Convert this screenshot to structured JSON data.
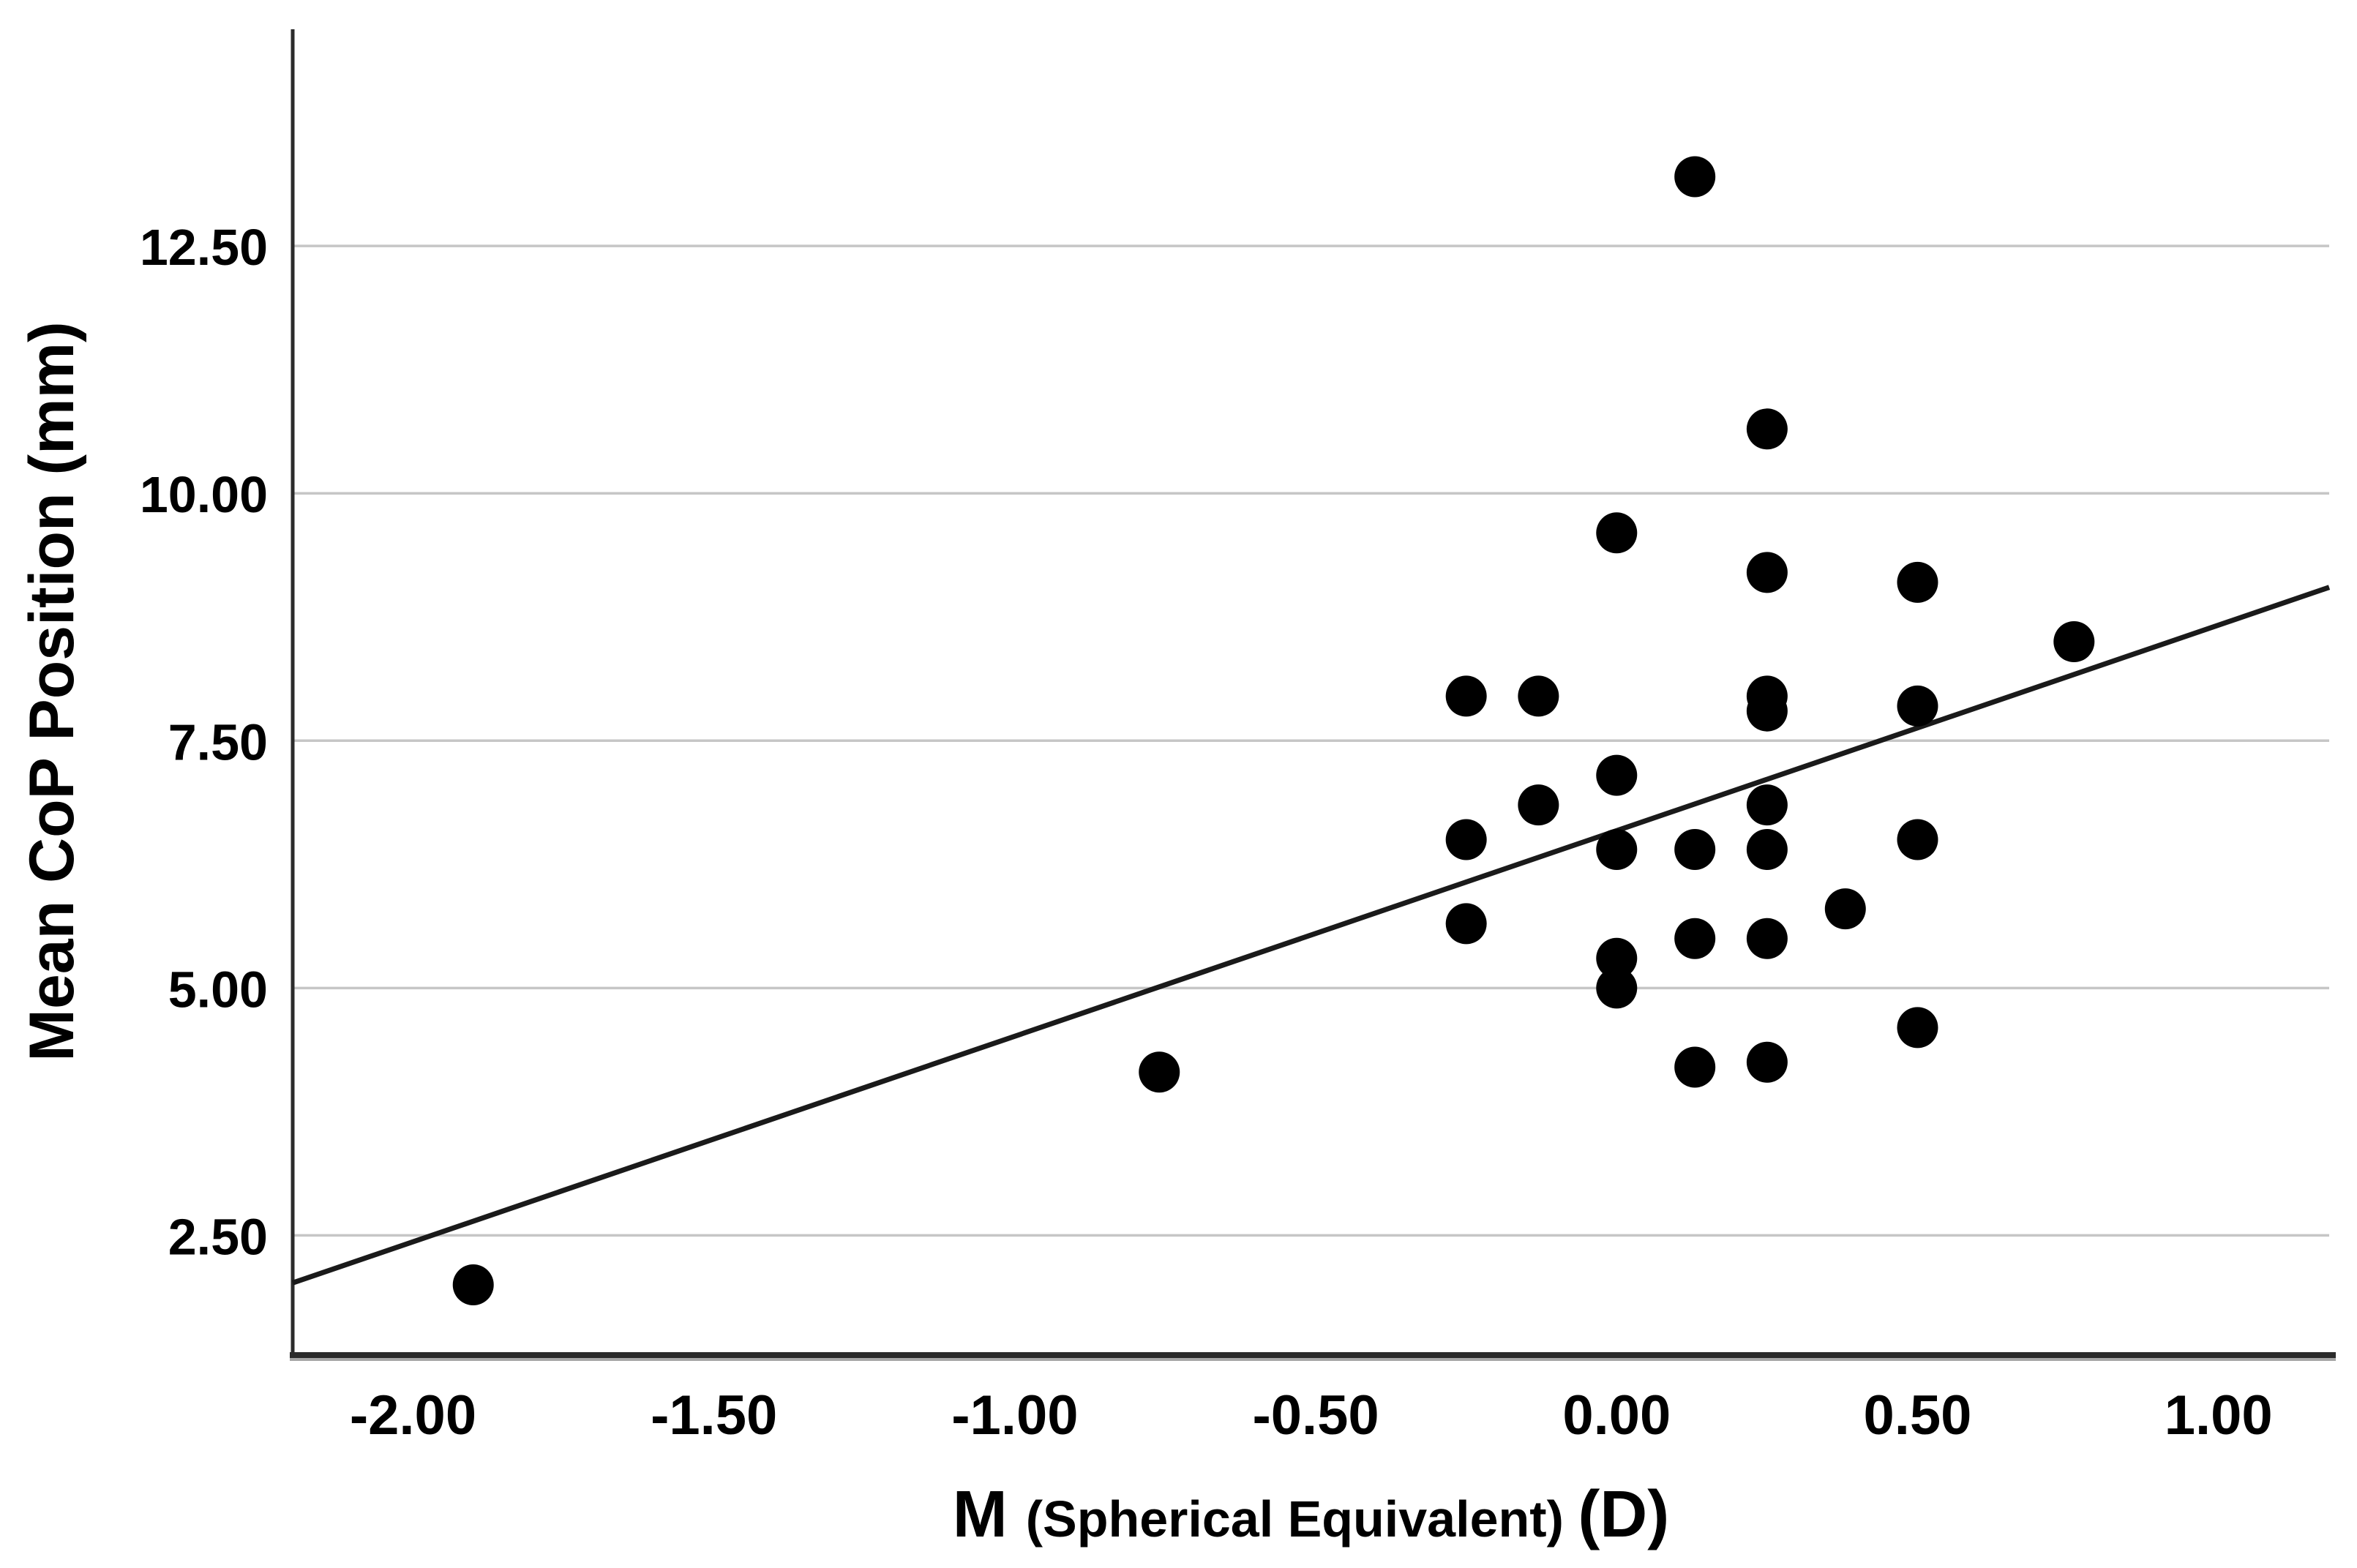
{
  "figure": {
    "background": "#ffffff"
  },
  "chart_data": {
    "type": "scatter",
    "title": "",
    "xlabel": "M (Spherical Equivalent) (D)",
    "xlabel_parts": {
      "main": "M ",
      "sub": "(Spherical Equivalent) ",
      "unit": "(D)"
    },
    "ylabel": "Mean CoP Position (mm)",
    "x_tick_values": [
      -2.0,
      -1.5,
      -1.0,
      -0.5,
      0.0,
      0.5,
      1.0
    ],
    "x_tick_labels": [
      "-2.00",
      "-1.50",
      "-1.00",
      "-0.50",
      "0.00",
      "0.50",
      "1.00"
    ],
    "y_tick_values": [
      2.5,
      5.0,
      7.5,
      10.0,
      12.5
    ],
    "y_tick_labels": [
      "2.50",
      "5.00",
      "7.50",
      "10.00",
      "12.50"
    ],
    "x_domain": [
      -2.2,
      1.184
    ],
    "y_domain": [
      1.29,
      14.69
    ],
    "grid": "horizontal-only",
    "legend": "none",
    "marker": {
      "shape": "circle",
      "color": "#000000",
      "radius_px": 28
    },
    "grid_color": "#c6c6c6",
    "axis_color": "#2b2b2b",
    "axis_shadow_color": "#a6a6a6",
    "line_color": "#1a1a1a",
    "points": [
      {
        "x": -1.9,
        "y": 2.0
      },
      {
        "x": -0.76,
        "y": 4.15
      },
      {
        "x": -0.25,
        "y": 7.95
      },
      {
        "x": -0.25,
        "y": 6.5
      },
      {
        "x": -0.25,
        "y": 5.65
      },
      {
        "x": -0.13,
        "y": 7.95
      },
      {
        "x": -0.13,
        "y": 6.85
      },
      {
        "x": 0.0,
        "y": 9.6
      },
      {
        "x": 0.0,
        "y": 7.15
      },
      {
        "x": 0.0,
        "y": 6.4
      },
      {
        "x": 0.0,
        "y": 5.3
      },
      {
        "x": 0.0,
        "y": 5.0
      },
      {
        "x": 0.13,
        "y": 13.2
      },
      {
        "x": 0.13,
        "y": 6.4
      },
      {
        "x": 0.13,
        "y": 5.5
      },
      {
        "x": 0.13,
        "y": 4.2
      },
      {
        "x": 0.25,
        "y": 10.65
      },
      {
        "x": 0.25,
        "y": 9.2
      },
      {
        "x": 0.25,
        "y": 7.95
      },
      {
        "x": 0.25,
        "y": 7.8
      },
      {
        "x": 0.25,
        "y": 6.85
      },
      {
        "x": 0.25,
        "y": 6.4
      },
      {
        "x": 0.25,
        "y": 5.5
      },
      {
        "x": 0.25,
        "y": 4.25
      },
      {
        "x": 0.38,
        "y": 5.8
      },
      {
        "x": 0.5,
        "y": 9.1
      },
      {
        "x": 0.5,
        "y": 7.85
      },
      {
        "x": 0.5,
        "y": 6.5
      },
      {
        "x": 0.5,
        "y": 4.6
      },
      {
        "x": 0.76,
        "y": 8.5
      }
    ],
    "regression_line": {
      "x1": -2.2,
      "y1": 2.02,
      "x2": 1.184,
      "y2": 9.05
    }
  }
}
